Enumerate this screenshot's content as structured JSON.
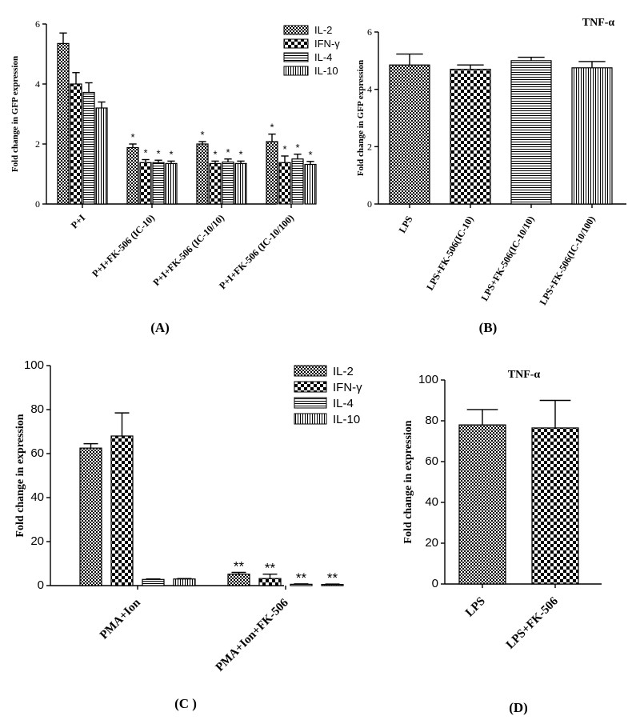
{
  "chart_data": [
    {
      "panel": "(A)",
      "type": "bar",
      "title": "",
      "ylabel": "Fold change in GFP expression",
      "xlabel": "",
      "ylim": [
        0,
        6
      ],
      "yticks": [
        0,
        2,
        4,
        6
      ],
      "categories": [
        "P+I",
        "P+I+FK-506 (IC-10)",
        "P+I+FK-506 (IC-10/10)",
        "P+I+FK-506 (IC-10/100)"
      ],
      "legend_position": "top-right",
      "series": [
        {
          "name": "IL-2",
          "pattern": "dense-check",
          "values": [
            5.35,
            1.88,
            2.0,
            2.08
          ],
          "errors": [
            0.35,
            0.12,
            0.08,
            0.25
          ],
          "annotations": [
            "",
            "*",
            "*",
            "*"
          ]
        },
        {
          "name": "IFN-γ",
          "pattern": "check",
          "values": [
            4.0,
            1.38,
            1.35,
            1.38
          ],
          "errors": [
            0.38,
            0.1,
            0.08,
            0.22
          ],
          "annotations": [
            "",
            "*",
            "*",
            "*"
          ]
        },
        {
          "name": "IL-4",
          "pattern": "hstripe",
          "values": [
            3.72,
            1.38,
            1.4,
            1.5
          ],
          "errors": [
            0.32,
            0.08,
            0.1,
            0.16
          ],
          "annotations": [
            "",
            "*",
            "*",
            "*"
          ]
        },
        {
          "name": "IL-10",
          "pattern": "vstripe",
          "values": [
            3.2,
            1.35,
            1.35,
            1.32
          ],
          "errors": [
            0.2,
            0.08,
            0.08,
            0.1
          ],
          "annotations": [
            "",
            "*",
            "*",
            "*"
          ]
        }
      ]
    },
    {
      "panel": "(B)",
      "type": "bar",
      "title": "TNF-α",
      "ylabel": "Fold change in GFP expression",
      "xlabel": "",
      "ylim": [
        0,
        6
      ],
      "yticks": [
        0,
        2,
        4,
        6
      ],
      "categories": [
        "LPS",
        "LPS+FK-506(IC-10)",
        "LPS+FK-506(IC-10/10)",
        "LPS+FK-506(IC-10/100)"
      ],
      "patterns": [
        "dense-check",
        "check",
        "hstripe",
        "vstripe"
      ],
      "values": [
        4.85,
        4.7,
        5.0,
        4.75
      ],
      "errors": [
        0.38,
        0.15,
        0.12,
        0.22
      ]
    },
    {
      "panel": "(C )",
      "type": "bar",
      "title": "",
      "ylabel": "Fold change in expression",
      "xlabel": "",
      "ylim": [
        0,
        100
      ],
      "yticks": [
        0,
        20,
        40,
        60,
        80,
        100
      ],
      "categories": [
        "PMA+Ion",
        "PMA+Ion+FK-506"
      ],
      "legend_position": "top-right",
      "series": [
        {
          "name": "IL-2",
          "pattern": "dense-check",
          "values": [
            62.5,
            5.2
          ],
          "errors": [
            2.0,
            0.8
          ],
          "annotations": [
            "",
            "**"
          ]
        },
        {
          "name": "IFN-γ",
          "pattern": "check",
          "values": [
            68.0,
            3.2
          ],
          "errors": [
            10.5,
            2.0
          ],
          "annotations": [
            "",
            "**"
          ]
        },
        {
          "name": "IL-4",
          "pattern": "hstripe",
          "values": [
            2.8,
            0.6
          ],
          "errors": [
            0.2,
            0.2
          ],
          "annotations": [
            "",
            "**"
          ]
        },
        {
          "name": "IL-10",
          "pattern": "vstripe",
          "values": [
            3.0,
            0.5
          ],
          "errors": [
            0.2,
            0.2
          ],
          "annotations": [
            "",
            "**"
          ]
        }
      ]
    },
    {
      "panel": "(D)",
      "type": "bar",
      "title": "TNF-α",
      "ylabel": "Fold change in expression",
      "xlabel": "",
      "ylim": [
        0,
        100
      ],
      "yticks": [
        0,
        20,
        40,
        60,
        80,
        100
      ],
      "categories": [
        "LPS",
        "LPS+FK-506"
      ],
      "patterns": [
        "dense-check",
        "check"
      ],
      "values": [
        78.0,
        76.5
      ],
      "errors": [
        7.5,
        13.5
      ]
    }
  ]
}
